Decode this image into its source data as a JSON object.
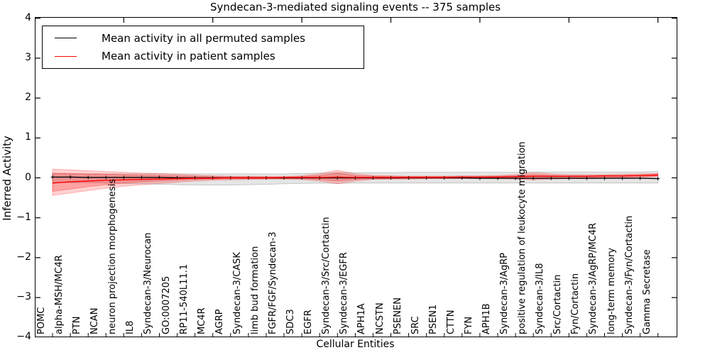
{
  "title": "Syndecan-3-mediated signaling events -- 375 samples",
  "axes": {
    "ylabel": "Inferred Activity",
    "xlabel": "Cellular Entities",
    "ytick_labels": [
      "4",
      "3",
      "2",
      "1",
      "0",
      "−1",
      "−2",
      "−3",
      "−4"
    ]
  },
  "legend": {
    "items": [
      {
        "label": "Mean activity in all permuted samples",
        "color": "#000000"
      },
      {
        "label": "Mean activity in patient samples",
        "color": "#ff0000"
      }
    ]
  },
  "colors": {
    "permuted_line": "#000000",
    "patient_line": "#ff0000",
    "permuted_band": "#000000",
    "patient_band": "#ff0000",
    "axis": "#000000"
  },
  "chart_data": {
    "type": "line",
    "title": "Syndecan-3-mediated signaling events -- 375 samples",
    "xlabel": "Cellular Entities",
    "ylabel": "Inferred Activity",
    "ylim": [
      -4,
      4
    ],
    "yticks": [
      4,
      3,
      2,
      1,
      0,
      -1,
      -2,
      -3,
      -4
    ],
    "grid": false,
    "legend_position": "upper left",
    "categories": [
      "POMC",
      "alpha-MSH/MC4R",
      "PTN",
      "NCAN",
      "neuron projection morphogenesis",
      "IL8",
      "Syndecan-3/Neurocan",
      "GO:0007205",
      "RP11-540L11.1",
      "MC4R",
      "AGRP",
      "Syndecan-3/CASK",
      "limb bud formation",
      "FGFR/FGF/Syndecan-3",
      "SDC3",
      "EGFR",
      "Syndecan-3/Src/Cortactin",
      "Syndecan-3/EGFR",
      "APH1A",
      "NCSTN",
      "PSENEN",
      "SRC",
      "PSEN1",
      "CTTN",
      "FYN",
      "APH1B",
      "Syndecan-3/AgRP",
      "positive regulation of leukocyte migration",
      "Syndecan-3/IL8",
      "Src/Cortactin",
      "Fyn/Cortactin",
      "Syndecan-3/AgRP/MC4R",
      "long-term memory",
      "Syndecan-3/Fyn/Cortactin",
      "Gamma Secretase"
    ],
    "series": [
      {
        "name": "Mean activity in all permuted samples",
        "color": "#000000",
        "marker": "plus",
        "values": [
          0.02,
          0.02,
          0.01,
          0.01,
          0.01,
          0.01,
          0.01,
          0.0,
          0.0,
          0.0,
          0.0,
          0.0,
          0.0,
          0.0,
          0.0,
          0.0,
          0.0,
          0.0,
          0.0,
          0.0,
          0.0,
          0.0,
          0.0,
          0.0,
          -0.01,
          -0.01,
          -0.01,
          -0.01,
          -0.01,
          -0.01,
          -0.01,
          -0.01,
          -0.01,
          -0.01,
          -0.02
        ]
      },
      {
        "name": "Mean activity in patient samples",
        "color": "#ff0000",
        "marker": "none",
        "values": [
          -0.13,
          -0.1,
          -0.08,
          -0.06,
          -0.05,
          -0.04,
          -0.03,
          -0.02,
          -0.01,
          -0.01,
          0.0,
          0.0,
          0.0,
          0.01,
          0.01,
          0.01,
          0.02,
          0.01,
          0.01,
          0.01,
          0.01,
          0.01,
          0.01,
          0.02,
          0.02,
          0.02,
          0.03,
          0.04,
          0.04,
          0.04,
          0.04,
          0.05,
          0.05,
          0.06,
          0.07
        ]
      }
    ],
    "bands": [
      {
        "name": "permuted-samples-range",
        "color": "#000000",
        "opacity": 0.1,
        "upper": [
          0.1,
          0.1,
          0.1,
          0.1,
          0.1,
          0.1,
          0.1,
          0.1,
          0.1,
          0.1,
          0.1,
          0.1,
          0.1,
          0.1,
          0.11,
          0.12,
          0.13,
          0.13,
          0.13,
          0.13,
          0.14,
          0.14,
          0.14,
          0.14,
          0.14,
          0.14,
          0.14,
          0.15,
          0.15,
          0.15,
          0.15,
          0.15,
          0.15,
          0.15,
          0.16
        ],
        "lower": [
          -0.12,
          -0.12,
          -0.12,
          -0.13,
          -0.14,
          -0.15,
          -0.16,
          -0.17,
          -0.18,
          -0.18,
          -0.18,
          -0.17,
          -0.16,
          -0.15,
          -0.14,
          -0.13,
          -0.14,
          -0.13,
          -0.13,
          -0.13,
          -0.13,
          -0.13,
          -0.13,
          -0.13,
          -0.13,
          -0.13,
          -0.13,
          -0.13,
          -0.13,
          -0.13,
          -0.13,
          -0.13,
          -0.13,
          -0.13,
          -0.13
        ]
      },
      {
        "name": "patient-samples-range-outer",
        "color": "#ff0000",
        "opacity": 0.18,
        "upper": [
          0.22,
          0.2,
          0.18,
          0.16,
          0.14,
          0.12,
          0.11,
          0.09,
          0.07,
          0.05,
          0.04,
          0.04,
          0.03,
          0.03,
          0.05,
          0.1,
          0.19,
          0.1,
          0.06,
          0.05,
          0.04,
          0.04,
          0.04,
          0.05,
          0.05,
          0.06,
          0.08,
          0.13,
          0.1,
          0.08,
          0.08,
          0.08,
          0.09,
          0.1,
          0.11
        ],
        "lower": [
          -0.44,
          -0.38,
          -0.32,
          -0.26,
          -0.21,
          -0.17,
          -0.14,
          -0.11,
          -0.08,
          -0.06,
          -0.05,
          -0.04,
          -0.03,
          -0.03,
          -0.04,
          -0.08,
          -0.15,
          -0.08,
          -0.04,
          -0.03,
          -0.03,
          -0.02,
          -0.02,
          -0.02,
          -0.02,
          -0.02,
          -0.03,
          -0.05,
          -0.03,
          -0.02,
          -0.02,
          -0.01,
          0.0,
          0.01,
          0.03
        ]
      },
      {
        "name": "patient-samples-range-inner",
        "color": "#ff0000",
        "opacity": 0.22,
        "upper": [
          0.12,
          0.11,
          0.1,
          0.09,
          0.08,
          0.07,
          0.06,
          0.05,
          0.04,
          0.03,
          0.02,
          0.02,
          0.02,
          0.02,
          0.03,
          0.06,
          0.12,
          0.06,
          0.04,
          0.03,
          0.03,
          0.03,
          0.03,
          0.03,
          0.03,
          0.04,
          0.05,
          0.08,
          0.06,
          0.05,
          0.05,
          0.06,
          0.06,
          0.07,
          0.09
        ],
        "lower": [
          -0.34,
          -0.28,
          -0.22,
          -0.17,
          -0.13,
          -0.1,
          -0.08,
          -0.06,
          -0.04,
          -0.03,
          -0.02,
          -0.02,
          -0.02,
          -0.02,
          -0.02,
          -0.04,
          -0.08,
          -0.04,
          -0.02,
          -0.02,
          -0.01,
          -0.01,
          -0.01,
          -0.01,
          -0.01,
          -0.01,
          -0.01,
          -0.02,
          -0.01,
          0.0,
          0.0,
          0.01,
          0.02,
          0.03,
          0.05
        ]
      }
    ]
  }
}
